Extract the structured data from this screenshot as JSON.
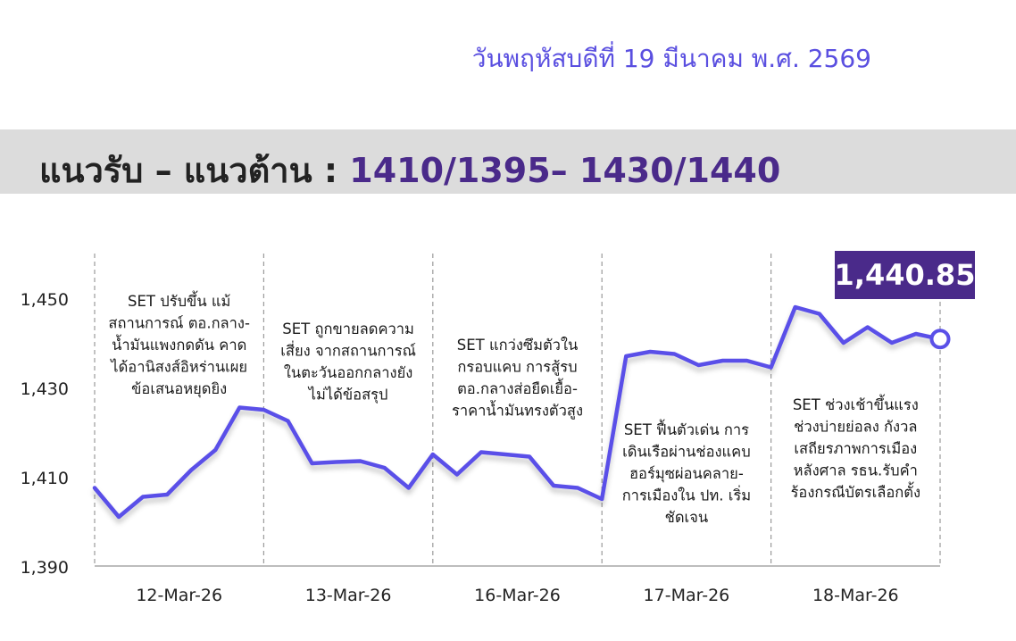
{
  "header": {
    "date": "วันพฤหัสบดีที่ 19 มีนาคม พ.ศ. 2569",
    "support_resistance_label": "แนวรับ – แนวต้าน : ",
    "support_resistance_values": "1410/1395– 1430/1440"
  },
  "last_value_badge": "1,440.85",
  "colors": {
    "line": "#5a50e8",
    "badge": "#4a2a8a",
    "band": "#dcdcdc",
    "date_text": "#5a4fe0"
  },
  "chart_data": {
    "type": "line",
    "title": "",
    "xlabel": "",
    "ylabel": "",
    "ylim": [
      1390,
      1460
    ],
    "yticks": [
      1390,
      1410,
      1430,
      1450
    ],
    "ytick_labels": [
      "1,390",
      "1,410",
      "1,430",
      "1,450"
    ],
    "grid": false,
    "days": [
      "12-Mar-26",
      "13-Mar-26",
      "16-Mar-26",
      "17-Mar-26",
      "18-Mar-26"
    ],
    "annotations": [
      {
        "day": "12-Mar-26",
        "lines": [
          "SET ปรับขึ้น แม้",
          "สถานการณ์ ตอ.กลาง-",
          "น้ำมันแพงกดดัน คาด",
          "ได้อานิสงส์อิหร่านเผย",
          "ข้อเสนอหยุดยิง"
        ]
      },
      {
        "day": "13-Mar-26",
        "lines": [
          "SET ถูกขายลดความ",
          "เสี่ยง จากสถานการณ์",
          "ในตะวันออกกลางยัง",
          "ไม่ได้ข้อสรุป"
        ]
      },
      {
        "day": "16-Mar-26",
        "lines": [
          "SET แกว่งซึมตัวใน",
          "กรอบแคบ การสู้รบ",
          "ตอ.กลางส่อยืดเยื้อ-",
          "ราคาน้ำมันทรงตัวสูง"
        ]
      },
      {
        "day": "17-Mar-26",
        "lines": [
          "SET ฟื้นตัวเด่น การ",
          "เดินเรือผ่านช่องแคบ",
          "ฮอร์มุซผ่อนคลาย-",
          "การเมืองใน ปท. เริ่ม",
          "ชัดเจน"
        ]
      },
      {
        "day": "18-Mar-26",
        "lines": [
          "SET ช่วงเช้าขึ้นแรง",
          "ช่วงบ่ายย่อลง กังวล",
          "เสถียรภาพการเมือง",
          "หลังศาล รธน.รับคำ",
          "ร้องกรณีบัตรเลือกตั้ง"
        ]
      }
    ],
    "series": [
      {
        "values": [
          1407.5,
          1401.0,
          1405.5,
          1406.0,
          1411.5,
          1416.0,
          1425.5,
          1425.0,
          1422.5,
          1413.0,
          1413.3,
          1413.5,
          1412.0,
          1407.5,
          1415.0,
          1410.5,
          1415.5,
          1415.0,
          1414.5,
          1408.0,
          1407.5,
          1405.0,
          1437.0,
          1438.0,
          1437.5,
          1435.0,
          1436.0,
          1436.0,
          1434.5,
          1448.0,
          1446.5,
          1440.0,
          1443.5,
          1440.0,
          1442.0,
          1440.85
        ]
      }
    ]
  }
}
